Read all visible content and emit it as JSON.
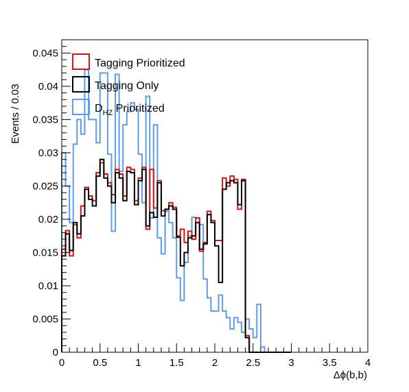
{
  "chart_data": {
    "type": "histogram",
    "xlabel": "Δϕ(b,b)",
    "ylabel": "Events / 0.03",
    "xlim": [
      0,
      4
    ],
    "ylim": [
      0,
      0.047
    ],
    "bin_start": 0,
    "bin_width": 0.05,
    "x_ticks": [
      "0",
      "0.5",
      "1",
      "1.5",
      "2",
      "2.5",
      "3",
      "3.5",
      "4"
    ],
    "x_tick_values": [
      0,
      0.5,
      1,
      1.5,
      2,
      2.5,
      3,
      3.5,
      4
    ],
    "y_ticks": [
      "0",
      "0.005",
      "0.01",
      "0.015",
      "0.02",
      "0.025",
      "0.03",
      "0.035",
      "0.04",
      "0.045"
    ],
    "y_tick_values": [
      0,
      0.005,
      0.01,
      0.015,
      0.02,
      0.025,
      0.03,
      0.035,
      0.04,
      0.045
    ],
    "legend": [
      {
        "label": "Tagging Prioritized",
        "color": "#e01010"
      },
      {
        "label": "Tagging Only",
        "color": "#000000"
      },
      {
        "label_main": "D",
        "label_sub": "HZ",
        "label_rest": " Prioritized",
        "color": "#5b9bf0"
      }
    ],
    "series": [
      {
        "name": "Tagging Prioritized",
        "color": "#e01010",
        "values": [
          0.0155,
          0.0183,
          0.0145,
          0.0192,
          0.0172,
          0.022,
          0.0248,
          0.0235,
          0.0228,
          0.027,
          0.0285,
          0.0268,
          0.0255,
          0.0237,
          0.0275,
          0.0268,
          0.0235,
          0.0278,
          0.0275,
          0.0228,
          0.0262,
          0.0278,
          0.0185,
          0.0275,
          0.0217,
          0.0258,
          0.0213,
          0.0215,
          0.0225,
          0.0218,
          0.0175,
          0.0185,
          0.0165,
          0.0182,
          0.017,
          0.0202,
          0.0152,
          0.0165,
          0.0212,
          0.0198,
          0.0168,
          0.0168,
          0.0262,
          0.025,
          0.0265,
          0.026,
          0.0215,
          0.026,
          0.0025,
          0,
          0,
          0,
          0,
          0,
          0,
          0,
          0,
          0,
          0,
          0
        ]
      },
      {
        "name": "Tagging Only",
        "color": "#000000",
        "values": [
          0.0145,
          0.0178,
          0.0153,
          0.0195,
          0.0178,
          0.0205,
          0.0245,
          0.023,
          0.022,
          0.0265,
          0.029,
          0.0262,
          0.025,
          0.0225,
          0.027,
          0.0262,
          0.0228,
          0.0272,
          0.027,
          0.0222,
          0.0258,
          0.0275,
          0.019,
          0.021,
          0.0203,
          0.0255,
          0.0205,
          0.0215,
          0.022,
          0.0215,
          0.0173,
          0.013,
          0.015,
          0.0172,
          0.0175,
          0.0195,
          0.0155,
          0.0163,
          0.0207,
          0.0195,
          0.016,
          0.0105,
          0.0245,
          0.0255,
          0.0258,
          0.0255,
          0.0222,
          0.0258,
          0.0022,
          0,
          0,
          0,
          0,
          0,
          0,
          0,
          0,
          0,
          0,
          0
        ]
      },
      {
        "name": "D_HZ Prioritized",
        "color": "#5b9bf0",
        "values": [
          0.03,
          0.025,
          0.0195,
          0.0313,
          0.035,
          0.0328,
          0.0425,
          0.035,
          0.035,
          0.0315,
          0.042,
          0.042,
          0.0298,
          0.0182,
          0.0418,
          0.0272,
          0.0342,
          0.0362,
          0.0375,
          0.0365,
          0.0298,
          0.0225,
          0.0385,
          0.0202,
          0.0342,
          0.0172,
          0.0148,
          0.0212,
          0.0195,
          0.0172,
          0.0112,
          0.0078,
          0.0135,
          0.0175,
          0.0203,
          0.0202,
          0.0192,
          0.011,
          0.0082,
          0.0062,
          0.0062,
          0.0086,
          0.0062,
          0.0052,
          0.0035,
          0.0052,
          0.0045,
          0.003,
          0.005,
          0.0035,
          0.0022,
          0.0072,
          0.0008,
          0,
          0,
          0,
          0,
          0,
          0,
          0
        ]
      }
    ]
  }
}
